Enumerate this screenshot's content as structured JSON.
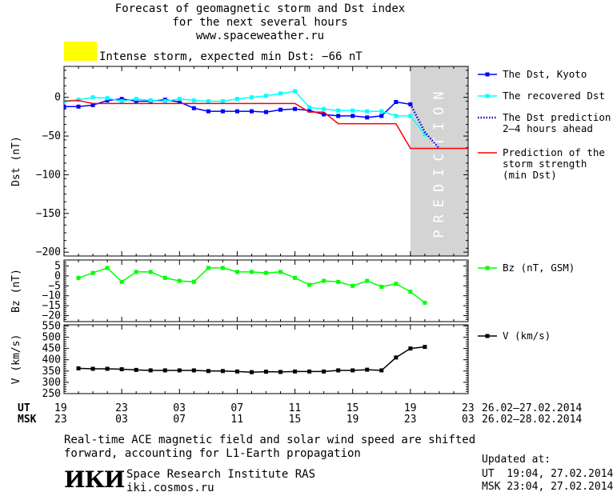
{
  "header": {
    "title_line1": "Forecast of geomagnetic storm and Dst index",
    "title_line2": "for the next several hours",
    "title_line3": "www.spaceweather.ru",
    "storm_color": "#ffff00",
    "storm_text": "Intense storm, expected min Dst: −66 nT"
  },
  "chart_data": [
    {
      "type": "line",
      "ylabel": "Dst (nT)",
      "ylim": [
        -205,
        40
      ],
      "yticks": [
        "0",
        "−50",
        "−100",
        "−150",
        "−200"
      ],
      "ytick_values": [
        0,
        -50,
        -100,
        -150,
        -200
      ],
      "xlim": [
        0,
        28
      ],
      "prediction_label": "PREDICTION",
      "prediction_span": [
        24,
        28
      ],
      "series": [
        {
          "name": "The Dst, Kyoto",
          "color": "#0000ff",
          "marker": "square",
          "style": "solid",
          "x": [
            0,
            1,
            2,
            3,
            4,
            5,
            6,
            7,
            8,
            9,
            10,
            11,
            12,
            13,
            14,
            15,
            16,
            17,
            18,
            19,
            20,
            21,
            22,
            23,
            24
          ],
          "y": [
            -12,
            -12,
            -10,
            -4,
            -2,
            -5,
            -5,
            -3,
            -6,
            -14,
            -18,
            -18,
            -18,
            -18,
            -19,
            -16,
            -15,
            -17,
            -22,
            -24,
            -24,
            -26,
            -24,
            -6,
            -9
          ]
        },
        {
          "name": "The recovered Dst",
          "color": "#00ffff",
          "marker": "square",
          "style": "solid",
          "x": [
            0,
            1,
            2,
            3,
            4,
            5,
            6,
            7,
            8,
            9,
            10,
            11,
            12,
            13,
            14,
            15,
            16,
            17,
            18,
            19,
            20,
            21,
            22,
            23,
            24,
            25
          ],
          "y": [
            -5,
            -3,
            0,
            -1,
            -5,
            -2,
            -4,
            -5,
            -2,
            -4,
            -5,
            -5,
            -2,
            0,
            2,
            5,
            8,
            -13,
            -15,
            -17,
            -17,
            -18,
            -18,
            -24,
            -24,
            -48
          ]
        },
        {
          "name": "The Dst prediction",
          "name2": "2–4 hours ahead",
          "color": "#0000cc",
          "marker": "none",
          "style": "dotted",
          "x": [
            24,
            25,
            26
          ],
          "y": [
            -9,
            -45,
            -66
          ]
        },
        {
          "name": "Prediction of the",
          "name2": "storm strength",
          "name3": "(min Dst)",
          "color": "#ff0000",
          "marker": "none",
          "style": "solid",
          "x": [
            0,
            1,
            2,
            3,
            4,
            5,
            6,
            7,
            8,
            9,
            10,
            11,
            12,
            13,
            14,
            15,
            16,
            17,
            18,
            19,
            20,
            21,
            22,
            23,
            24,
            25,
            26,
            27,
            28
          ],
          "y": [
            -5,
            -4,
            -8,
            -8,
            -8,
            -8,
            -8,
            -8,
            -8,
            -8,
            -8,
            -8,
            -8,
            -8,
            -8,
            -8,
            -8,
            -19,
            -19,
            -34,
            -34,
            -34,
            -34,
            -34,
            -66,
            -66,
            -66,
            -66,
            -66
          ]
        }
      ]
    },
    {
      "type": "line",
      "ylabel": "Bz (nT)",
      "ylim": [
        -23,
        8
      ],
      "yticks": [
        "5",
        "0",
        "−5",
        "−10",
        "−15",
        "−20"
      ],
      "ytick_values": [
        5,
        0,
        -5,
        -10,
        -15,
        -20
      ],
      "xlim": [
        0,
        28
      ],
      "series": [
        {
          "name": "Bz (nT, GSM)",
          "color": "#00ff00",
          "marker": "square",
          "style": "solid",
          "x": [
            1,
            2,
            3,
            4,
            5,
            6,
            7,
            8,
            9,
            10,
            11,
            12,
            13,
            14,
            15,
            16,
            17,
            18,
            19,
            20,
            21,
            22,
            23,
            24,
            25
          ],
          "y": [
            -1,
            1.5,
            4,
            -3,
            2,
            2,
            -1,
            -2.5,
            -3,
            4,
            4,
            2,
            2,
            1.5,
            2,
            -1,
            -4.5,
            -2.5,
            -3,
            -5,
            -2.5,
            -5.5,
            -4,
            -8,
            -13.5
          ]
        }
      ]
    },
    {
      "type": "line",
      "ylabel": "V (km/s)",
      "ylim": [
        250,
        555
      ],
      "yticks": [
        "550",
        "500",
        "450",
        "400",
        "350",
        "300",
        "250"
      ],
      "ytick_values": [
        550,
        500,
        450,
        400,
        350,
        300,
        250
      ],
      "xlim": [
        0,
        28
      ],
      "series": [
        {
          "name": "V (km/s)",
          "color": "#000000",
          "marker": "square",
          "style": "solid",
          "x": [
            1,
            2,
            3,
            4,
            5,
            6,
            7,
            8,
            9,
            10,
            11,
            12,
            13,
            14,
            15,
            16,
            17,
            18,
            19,
            20,
            21,
            22,
            23,
            24,
            25
          ],
          "y": [
            362,
            360,
            360,
            358,
            355,
            353,
            353,
            353,
            353,
            350,
            350,
            348,
            345,
            347,
            346,
            348,
            348,
            348,
            353,
            353,
            356,
            353,
            410,
            450,
            457
          ]
        }
      ]
    }
  ],
  "time_axis": {
    "ut_label": "UT",
    "msk_label": "MSK",
    "ut_ticks": [
      "19",
      "23",
      "03",
      "07",
      "11",
      "15",
      "19",
      "23"
    ],
    "msk_ticks": [
      "23",
      "03",
      "07",
      "11",
      "15",
      "19",
      "23",
      "03"
    ],
    "ut_range": "26.02–27.02.2014",
    "msk_range": "26.02–28.02.2014"
  },
  "footer": {
    "note_line1": "Real-time ACE magnetic field and solar wind speed are shifted",
    "note_line2": "forward, accounting for L1-Earth propagation",
    "logo_text": "ИКИ",
    "institute": "Space Research Institute RAS",
    "site": "iki.cosmos.ru",
    "updated_label": "Updated at:",
    "updated_ut": "UT  19:04, 27.02.2014",
    "updated_msk": "MSK 23:04, 27.02.2014"
  }
}
